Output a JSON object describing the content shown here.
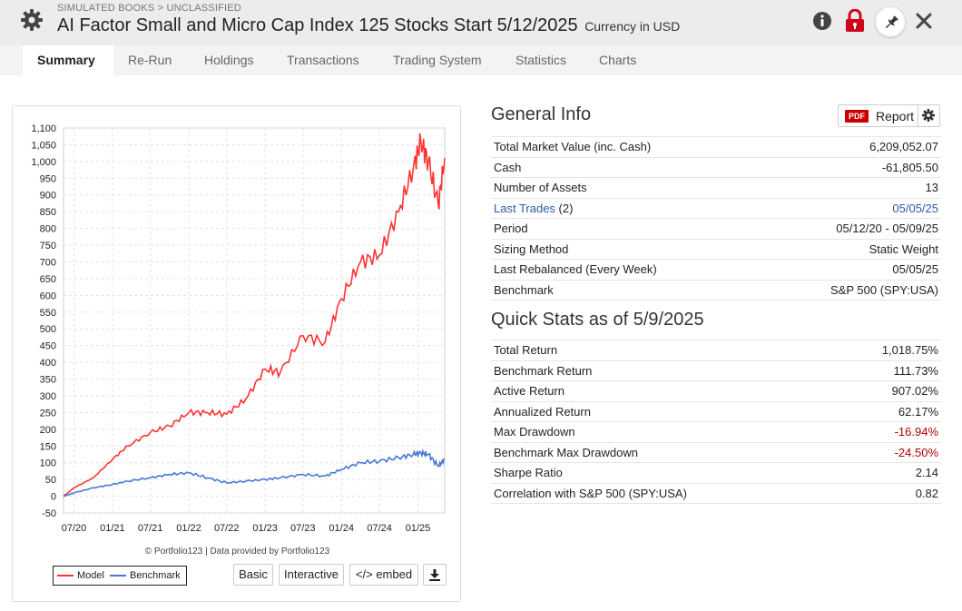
{
  "header": {
    "breadcrumb": "SIMULATED BOOKS > UNCLASSIFIED",
    "title": "AI Factor Small and Micro Cap Index 125 Stocks Start 5/12/2025",
    "currency": "Currency in USD",
    "icons": [
      "gear-icon",
      "info-icon",
      "lock-icon",
      "pin-icon",
      "close-icon"
    ],
    "colors": {
      "lock": "#d0021b",
      "bar": "#ececec"
    }
  },
  "tabs": [
    "Summary",
    "Re-Run",
    "Holdings",
    "Transactions",
    "Trading System",
    "Statistics",
    "Charts"
  ],
  "active_tab": "Summary",
  "chart": {
    "credit": "© Portfolio123 | Data provided by Portfolio123",
    "legend": [
      "Model",
      "Benchmark"
    ],
    "buttons": {
      "basic": "Basic",
      "interactive": "Interactive",
      "embed": "</> embed"
    },
    "download_icon": "download-icon"
  },
  "chart_data": {
    "type": "line",
    "title": "",
    "xlabel": "",
    "ylabel": "",
    "ylim": [
      -50,
      1100
    ],
    "yticks": [
      "1,100",
      "1,050",
      "1,000",
      "950",
      "900",
      "850",
      "800",
      "750",
      "700",
      "650",
      "600",
      "550",
      "500",
      "450",
      "400",
      "350",
      "300",
      "250",
      "200",
      "150",
      "100",
      "50",
      "0",
      "-50"
    ],
    "xticks": [
      "07/20",
      "01/21",
      "07/21",
      "01/22",
      "07/22",
      "01/23",
      "07/23",
      "01/24",
      "07/24",
      "01/25"
    ],
    "x_range": [
      "2020-05-12",
      "2025-05-09"
    ],
    "grid": true,
    "legend_position": "bottom-left",
    "x": [
      "2020-05-12",
      "2020-07-01",
      "2020-10-01",
      "2021-01-01",
      "2021-03-15",
      "2021-07-01",
      "2021-10-01",
      "2022-01-01",
      "2022-04-01",
      "2022-07-01",
      "2022-10-01",
      "2023-01-01",
      "2023-03-15",
      "2023-07-01",
      "2023-10-15",
      "2024-01-01",
      "2024-04-01",
      "2024-07-01",
      "2024-10-01",
      "2024-12-10",
      "2025-01-15",
      "2025-02-20",
      "2025-04-08",
      "2025-05-09"
    ],
    "series": [
      {
        "name": "Model",
        "color": "#ff3333",
        "values": [
          0,
          25,
          55,
          110,
          150,
          190,
          210,
          250,
          250,
          245,
          290,
          380,
          370,
          480,
          460,
          590,
          700,
          720,
          850,
          980,
          1060,
          1000,
          870,
          1010
        ]
      },
      {
        "name": "Benchmark",
        "color": "#4a78d4",
        "values": [
          0,
          10,
          25,
          35,
          45,
          55,
          65,
          70,
          55,
          40,
          45,
          50,
          55,
          65,
          60,
          80,
          100,
          105,
          115,
          125,
          130,
          125,
          90,
          110
        ]
      }
    ]
  },
  "general_info": {
    "title": "General Info",
    "report": {
      "pdf_badge": "PDF",
      "label": "Report",
      "gear_icon": "gear-icon"
    },
    "rows": [
      {
        "label": "Total Market Value (inc. Cash)",
        "value": "6,209,052.07"
      },
      {
        "label": "Cash",
        "value": "-61,805.50"
      },
      {
        "label": "Number of Assets",
        "value": "13"
      },
      {
        "label": "Last Trades",
        "suffix": " (2)",
        "value": "05/05/25",
        "link": true
      },
      {
        "label": "Period",
        "value": "05/12/20 - 05/09/25"
      },
      {
        "label": "Sizing Method",
        "value": "Static Weight"
      },
      {
        "label": "Last Rebalanced (Every Week)",
        "value": "05/05/25"
      },
      {
        "label": "Benchmark",
        "value": "S&P 500 (SPY:USA)"
      }
    ]
  },
  "quick_stats": {
    "title": "Quick Stats as of 5/9/2025",
    "rows": [
      {
        "label": "Total Return",
        "value": "1,018.75%"
      },
      {
        "label": "Benchmark Return",
        "value": "111.73%"
      },
      {
        "label": "Active Return",
        "value": "907.02%"
      },
      {
        "label": "Annualized Return",
        "value": "62.17%"
      },
      {
        "label": "Max Drawdown",
        "value": "-16.94%",
        "negative": true
      },
      {
        "label": "Benchmark Max Drawdown",
        "value": "-24.50%",
        "negative": true
      },
      {
        "label": "Sharpe Ratio",
        "value": "2.14"
      },
      {
        "label": "Correlation with S&P 500 (SPY:USA)",
        "value": "0.82"
      }
    ]
  }
}
